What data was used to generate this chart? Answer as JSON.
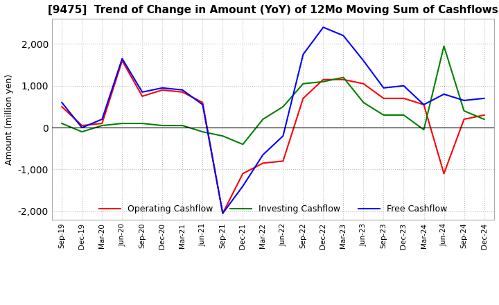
{
  "title": "[9475]  Trend of Change in Amount (YoY) of 12Mo Moving Sum of Cashflows",
  "ylabel": "Amount (million yen)",
  "ylim": [
    -2200,
    2600
  ],
  "yticks": [
    -2000,
    -1000,
    0,
    1000,
    2000
  ],
  "background_color": "#ffffff",
  "grid_color": "#bbbbbb",
  "legend_labels": [
    "Operating Cashflow",
    "Investing Cashflow",
    "Free Cashflow"
  ],
  "legend_colors": [
    "#ff0000",
    "#008000",
    "#0000ff"
  ],
  "x_labels": [
    "Sep-19",
    "Dec-19",
    "Mar-20",
    "Jun-20",
    "Sep-20",
    "Dec-20",
    "Mar-21",
    "Jun-21",
    "Sep-21",
    "Dec-21",
    "Mar-22",
    "Jun-22",
    "Sep-22",
    "Dec-22",
    "Mar-23",
    "Jun-23",
    "Sep-23",
    "Dec-23",
    "Mar-24",
    "Jun-24",
    "Sep-24",
    "Dec-24"
  ],
  "operating": [
    500,
    50,
    100,
    1600,
    750,
    900,
    850,
    600,
    -2050,
    -1100,
    -850,
    -800,
    700,
    1150,
    1150,
    1050,
    700,
    700,
    550,
    -1100,
    200,
    300
  ],
  "investing": [
    100,
    -100,
    50,
    100,
    100,
    50,
    50,
    -100,
    -200,
    -400,
    200,
    500,
    1050,
    1100,
    1200,
    600,
    300,
    300,
    -50,
    1950,
    400,
    200
  ],
  "free": [
    600,
    0,
    200,
    1650,
    850,
    950,
    900,
    550,
    -2050,
    -1400,
    -650,
    -200,
    1750,
    2400,
    2200,
    1600,
    950,
    1000,
    550,
    800,
    650,
    700
  ]
}
